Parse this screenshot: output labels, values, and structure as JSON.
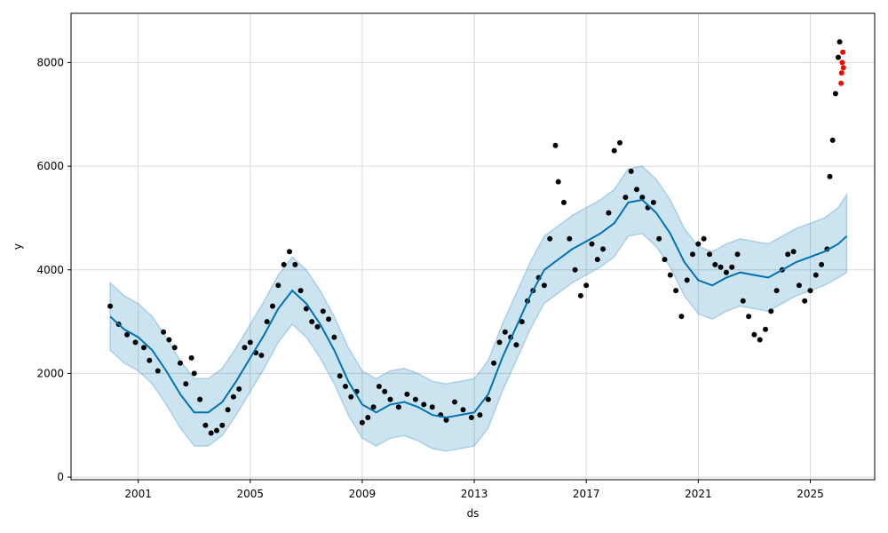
{
  "chart_data": {
    "type": "scatter",
    "xlabel": "ds",
    "ylabel": "y",
    "xlim": [
      1998.6,
      2027.3
    ],
    "ylim": [
      -50,
      8950
    ],
    "x_ticks": [
      2001,
      2005,
      2009,
      2013,
      2017,
      2021,
      2025
    ],
    "x_tick_labels": [
      "2001",
      "2005",
      "2009",
      "2013",
      "2017",
      "2021",
      "2025"
    ],
    "y_ticks": [
      0,
      2000,
      4000,
      6000,
      8000
    ],
    "y_tick_labels": [
      "0",
      "2000",
      "4000",
      "6000",
      "8000"
    ],
    "grid": true,
    "colors": {
      "observed": "#000000",
      "forecast": "#0072B2",
      "uncertainty": "#0072B2",
      "recent": "#ff0000"
    },
    "series": [
      {
        "role": "forecast",
        "points": [
          [
            2000.0,
            3100
          ],
          [
            2000.5,
            2850
          ],
          [
            2001.0,
            2700
          ],
          [
            2001.5,
            2450
          ],
          [
            2002.0,
            2050
          ],
          [
            2002.5,
            1600
          ],
          [
            2003.0,
            1250
          ],
          [
            2003.5,
            1250
          ],
          [
            2004.0,
            1450
          ],
          [
            2004.5,
            1850
          ],
          [
            2005.0,
            2300
          ],
          [
            2005.5,
            2750
          ],
          [
            2006.0,
            3250
          ],
          [
            2006.5,
            3600
          ],
          [
            2007.0,
            3350
          ],
          [
            2007.5,
            2950
          ],
          [
            2008.0,
            2450
          ],
          [
            2008.5,
            1850
          ],
          [
            2009.0,
            1400
          ],
          [
            2009.5,
            1250
          ],
          [
            2010.0,
            1400
          ],
          [
            2010.5,
            1450
          ],
          [
            2011.0,
            1350
          ],
          [
            2011.5,
            1200
          ],
          [
            2012.0,
            1150
          ],
          [
            2012.5,
            1200
          ],
          [
            2013.0,
            1250
          ],
          [
            2013.5,
            1600
          ],
          [
            2014.0,
            2300
          ],
          [
            2014.5,
            2900
          ],
          [
            2015.0,
            3500
          ],
          [
            2015.5,
            4000
          ],
          [
            2016.0,
            4200
          ],
          [
            2016.5,
            4400
          ],
          [
            2017.0,
            4550
          ],
          [
            2017.5,
            4700
          ],
          [
            2018.0,
            4900
          ],
          [
            2018.5,
            5300
          ],
          [
            2019.0,
            5350
          ],
          [
            2019.5,
            5100
          ],
          [
            2020.0,
            4700
          ],
          [
            2020.5,
            4150
          ],
          [
            2021.0,
            3800
          ],
          [
            2021.5,
            3700
          ],
          [
            2022.0,
            3850
          ],
          [
            2022.5,
            3950
          ],
          [
            2023.0,
            3900
          ],
          [
            2023.5,
            3850
          ],
          [
            2024.0,
            4000
          ],
          [
            2024.5,
            4150
          ],
          [
            2025.0,
            4250
          ],
          [
            2025.5,
            4350
          ],
          [
            2026.0,
            4500
          ],
          [
            2026.3,
            4650
          ]
        ]
      },
      {
        "role": "uncertainty-upper",
        "points": [
          [
            2000.0,
            3750
          ],
          [
            2000.5,
            3500
          ],
          [
            2001.0,
            3350
          ],
          [
            2001.5,
            3100
          ],
          [
            2002.0,
            2700
          ],
          [
            2002.5,
            2250
          ],
          [
            2003.0,
            1900
          ],
          [
            2003.5,
            1900
          ],
          [
            2004.0,
            2100
          ],
          [
            2004.5,
            2500
          ],
          [
            2005.0,
            2950
          ],
          [
            2005.5,
            3400
          ],
          [
            2006.0,
            3900
          ],
          [
            2006.5,
            4250
          ],
          [
            2007.0,
            4000
          ],
          [
            2007.5,
            3600
          ],
          [
            2008.0,
            3100
          ],
          [
            2008.5,
            2500
          ],
          [
            2009.0,
            2050
          ],
          [
            2009.5,
            1900
          ],
          [
            2010.0,
            2050
          ],
          [
            2010.5,
            2100
          ],
          [
            2011.0,
            2000
          ],
          [
            2011.5,
            1850
          ],
          [
            2012.0,
            1800
          ],
          [
            2012.5,
            1850
          ],
          [
            2013.0,
            1900
          ],
          [
            2013.5,
            2250
          ],
          [
            2014.0,
            2950
          ],
          [
            2014.5,
            3550
          ],
          [
            2015.0,
            4150
          ],
          [
            2015.5,
            4650
          ],
          [
            2016.0,
            4850
          ],
          [
            2016.5,
            5050
          ],
          [
            2017.0,
            5200
          ],
          [
            2017.5,
            5350
          ],
          [
            2018.0,
            5550
          ],
          [
            2018.5,
            5950
          ],
          [
            2019.0,
            6000
          ],
          [
            2019.5,
            5750
          ],
          [
            2020.0,
            5350
          ],
          [
            2020.5,
            4800
          ],
          [
            2021.0,
            4450
          ],
          [
            2021.5,
            4350
          ],
          [
            2022.0,
            4500
          ],
          [
            2022.5,
            4600
          ],
          [
            2023.0,
            4550
          ],
          [
            2023.5,
            4500
          ],
          [
            2024.0,
            4650
          ],
          [
            2024.5,
            4800
          ],
          [
            2025.0,
            4900
          ],
          [
            2025.5,
            5000
          ],
          [
            2026.0,
            5200
          ],
          [
            2026.3,
            5450
          ]
        ]
      },
      {
        "role": "uncertainty-lower",
        "points": [
          [
            2000.0,
            2450
          ],
          [
            2000.5,
            2200
          ],
          [
            2001.0,
            2050
          ],
          [
            2001.5,
            1800
          ],
          [
            2002.0,
            1400
          ],
          [
            2002.5,
            950
          ],
          [
            2003.0,
            600
          ],
          [
            2003.5,
            600
          ],
          [
            2004.0,
            800
          ],
          [
            2004.5,
            1200
          ],
          [
            2005.0,
            1650
          ],
          [
            2005.5,
            2100
          ],
          [
            2006.0,
            2600
          ],
          [
            2006.5,
            2950
          ],
          [
            2007.0,
            2700
          ],
          [
            2007.5,
            2300
          ],
          [
            2008.0,
            1800
          ],
          [
            2008.5,
            1200
          ],
          [
            2009.0,
            750
          ],
          [
            2009.5,
            600
          ],
          [
            2010.0,
            750
          ],
          [
            2010.5,
            800
          ],
          [
            2011.0,
            700
          ],
          [
            2011.5,
            550
          ],
          [
            2012.0,
            500
          ],
          [
            2012.5,
            550
          ],
          [
            2013.0,
            600
          ],
          [
            2013.5,
            950
          ],
          [
            2014.0,
            1650
          ],
          [
            2014.5,
            2250
          ],
          [
            2015.0,
            2850
          ],
          [
            2015.5,
            3350
          ],
          [
            2016.0,
            3550
          ],
          [
            2016.5,
            3750
          ],
          [
            2017.0,
            3900
          ],
          [
            2017.5,
            4050
          ],
          [
            2018.0,
            4250
          ],
          [
            2018.5,
            4650
          ],
          [
            2019.0,
            4700
          ],
          [
            2019.5,
            4450
          ],
          [
            2020.0,
            4050
          ],
          [
            2020.5,
            3500
          ],
          [
            2021.0,
            3150
          ],
          [
            2021.5,
            3050
          ],
          [
            2022.0,
            3200
          ],
          [
            2022.5,
            3300
          ],
          [
            2023.0,
            3250
          ],
          [
            2023.5,
            3200
          ],
          [
            2024.0,
            3350
          ],
          [
            2024.5,
            3500
          ],
          [
            2025.0,
            3600
          ],
          [
            2025.5,
            3700
          ],
          [
            2026.0,
            3850
          ],
          [
            2026.3,
            3950
          ]
        ]
      },
      {
        "role": "observed",
        "points": [
          [
            2000.0,
            3300
          ],
          [
            2000.3,
            2950
          ],
          [
            2000.6,
            2750
          ],
          [
            2000.9,
            2600
          ],
          [
            2001.2,
            2500
          ],
          [
            2001.4,
            2250
          ],
          [
            2001.7,
            2050
          ],
          [
            2001.9,
            2800
          ],
          [
            2002.1,
            2650
          ],
          [
            2002.3,
            2500
          ],
          [
            2002.5,
            2200
          ],
          [
            2002.7,
            1800
          ],
          [
            2002.9,
            2300
          ],
          [
            2003.0,
            2000
          ],
          [
            2003.2,
            1500
          ],
          [
            2003.4,
            1000
          ],
          [
            2003.6,
            850
          ],
          [
            2003.8,
            900
          ],
          [
            2004.0,
            1000
          ],
          [
            2004.2,
            1300
          ],
          [
            2004.4,
            1550
          ],
          [
            2004.6,
            1700
          ],
          [
            2004.8,
            2500
          ],
          [
            2005.0,
            2600
          ],
          [
            2005.2,
            2400
          ],
          [
            2005.4,
            2350
          ],
          [
            2005.6,
            3000
          ],
          [
            2005.8,
            3300
          ],
          [
            2006.0,
            3700
          ],
          [
            2006.2,
            4100
          ],
          [
            2006.4,
            4350
          ],
          [
            2006.6,
            4100
          ],
          [
            2006.8,
            3600
          ],
          [
            2007.0,
            3250
          ],
          [
            2007.2,
            3000
          ],
          [
            2007.4,
            2900
          ],
          [
            2007.6,
            3200
          ],
          [
            2007.8,
            3050
          ],
          [
            2008.0,
            2700
          ],
          [
            2008.2,
            1950
          ],
          [
            2008.4,
            1750
          ],
          [
            2008.6,
            1550
          ],
          [
            2008.8,
            1650
          ],
          [
            2009.0,
            1050
          ],
          [
            2009.2,
            1150
          ],
          [
            2009.4,
            1350
          ],
          [
            2009.6,
            1750
          ],
          [
            2009.8,
            1650
          ],
          [
            2010.0,
            1500
          ],
          [
            2010.3,
            1350
          ],
          [
            2010.6,
            1600
          ],
          [
            2010.9,
            1500
          ],
          [
            2011.2,
            1400
          ],
          [
            2011.5,
            1350
          ],
          [
            2011.8,
            1200
          ],
          [
            2012.0,
            1100
          ],
          [
            2012.3,
            1450
          ],
          [
            2012.6,
            1300
          ],
          [
            2012.9,
            1150
          ],
          [
            2013.2,
            1200
          ],
          [
            2013.5,
            1500
          ],
          [
            2013.7,
            2200
          ],
          [
            2013.9,
            2600
          ],
          [
            2014.1,
            2800
          ],
          [
            2014.3,
            2700
          ],
          [
            2014.5,
            2550
          ],
          [
            2014.7,
            3000
          ],
          [
            2014.9,
            3400
          ],
          [
            2015.1,
            3600
          ],
          [
            2015.3,
            3850
          ],
          [
            2015.5,
            3700
          ],
          [
            2015.7,
            4600
          ],
          [
            2015.9,
            6400
          ],
          [
            2016.0,
            5700
          ],
          [
            2016.2,
            5300
          ],
          [
            2016.4,
            4600
          ],
          [
            2016.6,
            4000
          ],
          [
            2016.8,
            3500
          ],
          [
            2017.0,
            3700
          ],
          [
            2017.2,
            4500
          ],
          [
            2017.4,
            4200
          ],
          [
            2017.6,
            4400
          ],
          [
            2017.8,
            5100
          ],
          [
            2018.0,
            6300
          ],
          [
            2018.2,
            6450
          ],
          [
            2018.4,
            5400
          ],
          [
            2018.6,
            5900
          ],
          [
            2018.8,
            5550
          ],
          [
            2019.0,
            5400
          ],
          [
            2019.2,
            5200
          ],
          [
            2019.4,
            5300
          ],
          [
            2019.6,
            4600
          ],
          [
            2019.8,
            4200
          ],
          [
            2020.0,
            3900
          ],
          [
            2020.2,
            3600
          ],
          [
            2020.4,
            3100
          ],
          [
            2020.6,
            3800
          ],
          [
            2020.8,
            4300
          ],
          [
            2021.0,
            4500
          ],
          [
            2021.2,
            4600
          ],
          [
            2021.4,
            4300
          ],
          [
            2021.6,
            4100
          ],
          [
            2021.8,
            4050
          ],
          [
            2022.0,
            3950
          ],
          [
            2022.2,
            4050
          ],
          [
            2022.4,
            4300
          ],
          [
            2022.6,
            3400
          ],
          [
            2022.8,
            3100
          ],
          [
            2023.0,
            2750
          ],
          [
            2023.2,
            2650
          ],
          [
            2023.4,
            2850
          ],
          [
            2023.6,
            3200
          ],
          [
            2023.8,
            3600
          ],
          [
            2024.0,
            4000
          ],
          [
            2024.2,
            4300
          ],
          [
            2024.4,
            4350
          ],
          [
            2024.6,
            3700
          ],
          [
            2024.8,
            3400
          ],
          [
            2025.0,
            3600
          ],
          [
            2025.2,
            3900
          ],
          [
            2025.4,
            4100
          ],
          [
            2025.6,
            4400
          ],
          [
            2025.7,
            5800
          ],
          [
            2025.8,
            6500
          ],
          [
            2025.9,
            7400
          ],
          [
            2026.0,
            8100
          ],
          [
            2026.05,
            8400
          ]
        ]
      },
      {
        "role": "recent",
        "points": [
          [
            2026.1,
            7600
          ],
          [
            2026.12,
            7800
          ],
          [
            2026.14,
            8000
          ],
          [
            2026.16,
            8200
          ],
          [
            2026.18,
            7900
          ]
        ]
      }
    ]
  }
}
